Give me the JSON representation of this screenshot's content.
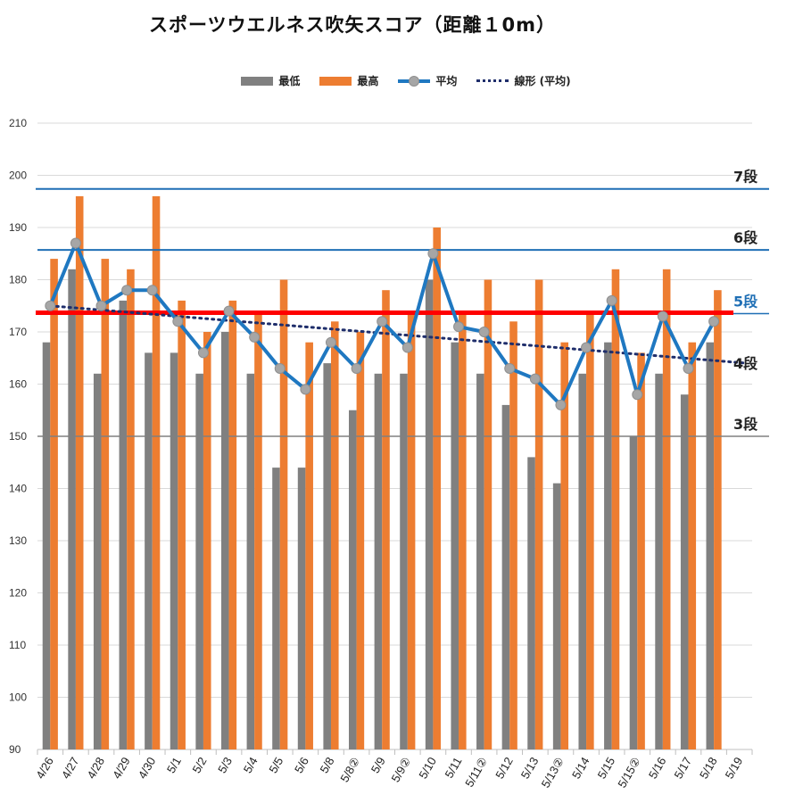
{
  "title": "スポーツウエルネス吹矢スコア（距離１0m）",
  "legend": {
    "min_label": "最低",
    "max_label": "最高",
    "avg_label": "平均",
    "trend_label": "線形 (平均)"
  },
  "colors": {
    "min_bar": "#808080",
    "max_bar": "#ed7d31",
    "avg_line": "#1f78c1",
    "avg_marker": "#a6a6a6",
    "trend": "#1f2e6b",
    "five_dan_line": "#ff0000",
    "rank_line": "#1f6fb5",
    "three_dan_line": "#808080",
    "grid": "#d9d9d9"
  },
  "chart_data": {
    "type": "bar",
    "title": "スポーツウエルネス吹矢スコア（距離１0m）",
    "ylim": [
      90,
      210
    ],
    "yticks": [
      90,
      100,
      110,
      120,
      130,
      140,
      150,
      160,
      170,
      180,
      190,
      200,
      210
    ],
    "grid": true,
    "legend_position": "top",
    "categories": [
      "4/26",
      "4/27",
      "4/28",
      "4/29",
      "4/30",
      "5/1",
      "5/2",
      "5/3",
      "5/4",
      "5/5",
      "5/6",
      "5/8",
      "5/8②",
      "5/9",
      "5/9②",
      "5/10",
      "5/11",
      "5/11②",
      "5/12",
      "5/13",
      "5/13②",
      "5/14",
      "5/15",
      "5/15②",
      "5/16",
      "5/17",
      "5/18",
      "5/19"
    ],
    "series": [
      {
        "name": "最低",
        "type": "bar",
        "values": [
          168,
          182,
          162,
          176,
          166,
          166,
          162,
          170,
          162,
          144,
          144,
          164,
          155,
          162,
          162,
          180,
          168,
          162,
          156,
          146,
          141,
          162,
          168,
          150,
          162,
          158,
          168,
          null
        ]
      },
      {
        "name": "最高",
        "type": "bar",
        "values": [
          184,
          196,
          184,
          182,
          196,
          176,
          170,
          176,
          174,
          180,
          168,
          172,
          170,
          178,
          174,
          190,
          174,
          180,
          172,
          180,
          168,
          174,
          182,
          166,
          182,
          168,
          178,
          null
        ]
      },
      {
        "name": "平均",
        "type": "line",
        "values": [
          175,
          187,
          175,
          178,
          178,
          172,
          166,
          174,
          169,
          163,
          159,
          168,
          163,
          172,
          167,
          185,
          171,
          170,
          163,
          161,
          156,
          167,
          176,
          158,
          173,
          163,
          172,
          null
        ]
      },
      {
        "name": "線形 (平均)",
        "type": "trendline",
        "from": 175,
        "to": 164
      }
    ],
    "reference_lines": [
      {
        "label": "7段",
        "y": 197.4
      },
      {
        "label": "6段",
        "y": 185.7
      },
      {
        "label": "5段",
        "y": 173.5
      },
      {
        "label": "3段",
        "y": 150
      }
    ],
    "annotations": [
      {
        "label": "4段",
        "near_y": 164
      }
    ]
  }
}
